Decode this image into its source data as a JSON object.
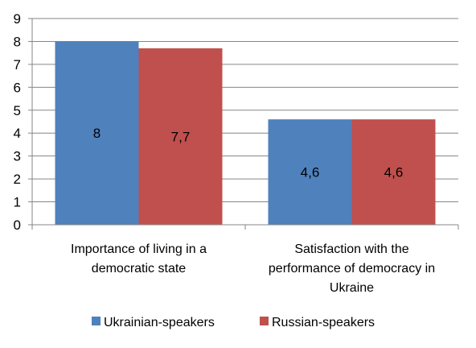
{
  "chart_data": {
    "type": "bar",
    "categories": [
      [
        "Importance of living in a",
        "democratic state"
      ],
      [
        "Satisfaction with the",
        "performance of democracy in",
        "Ukraine"
      ]
    ],
    "series": [
      {
        "name": "Ukrainian-speakers",
        "values": [
          8,
          4.6
        ],
        "labels": [
          "8",
          "4,6"
        ],
        "color": "#4F81BD"
      },
      {
        "name": "Russian-speakers",
        "values": [
          7.7,
          4.6
        ],
        "labels": [
          "7,7",
          "4,6"
        ],
        "color": "#C0504D"
      }
    ],
    "ylim": [
      0,
      9
    ],
    "yticks": [
      0,
      1,
      2,
      3,
      4,
      5,
      6,
      7,
      8,
      9
    ],
    "grid": true,
    "legend": "bottom"
  }
}
